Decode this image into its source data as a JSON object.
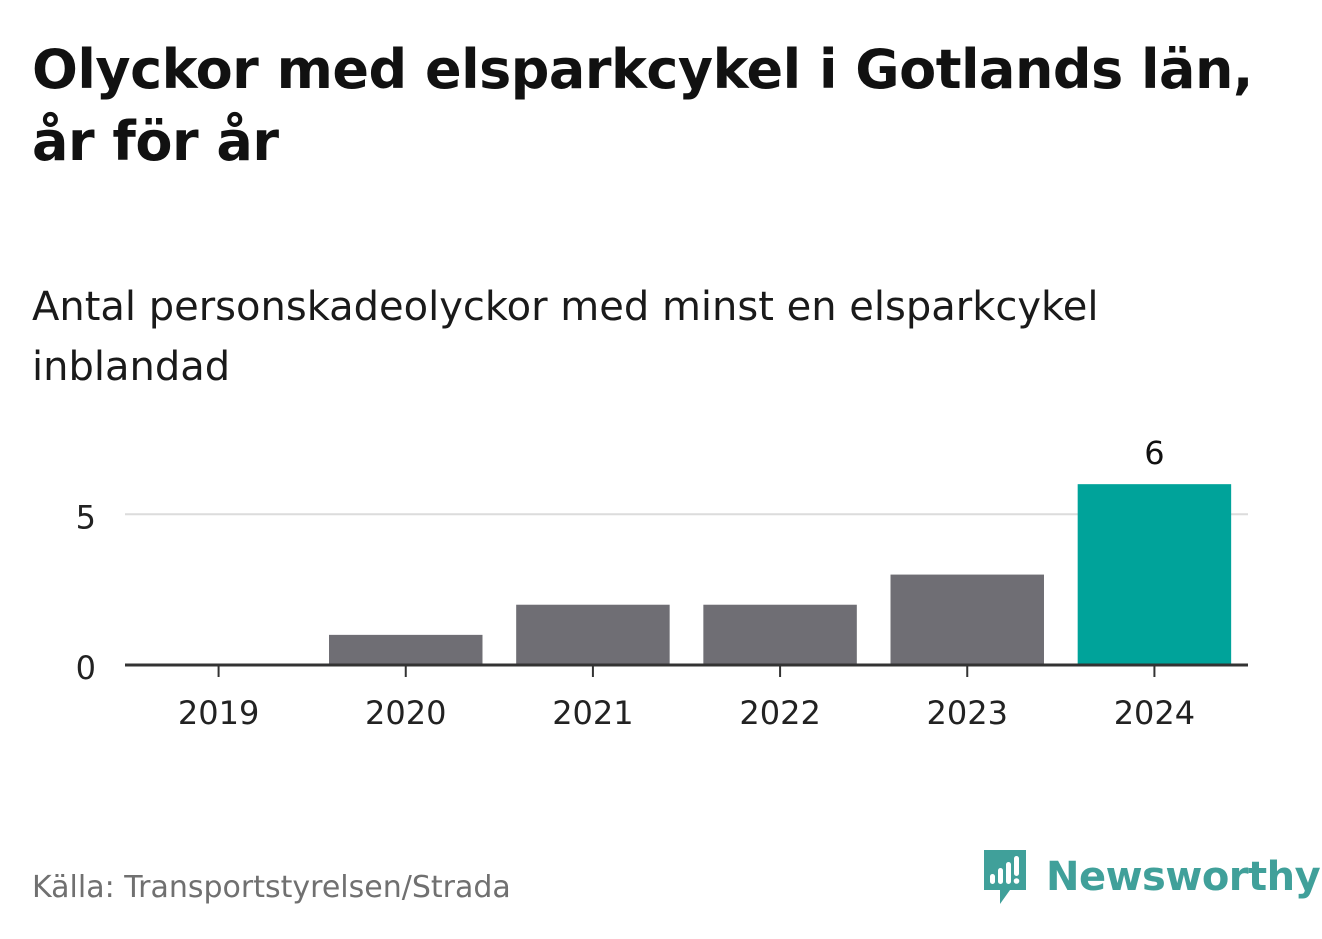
{
  "title": "Olyckor med elsparkcykel i Gotlands län, år för år",
  "subtitle": "Antal personskadeolyckor med minst en elsparkcykel inblandad",
  "source": "Källa: Transportstyrelsen/Strada",
  "brand": {
    "name": "Newsworthy",
    "icon": "newsworthy-logo-icon",
    "color": "#40a09a"
  },
  "chart_data": {
    "type": "bar",
    "categories": [
      "2019",
      "2020",
      "2021",
      "2022",
      "2023",
      "2024"
    ],
    "values": [
      0,
      1,
      2,
      2,
      3,
      6
    ],
    "ylim": [
      0,
      7.2
    ],
    "yticks": [
      0,
      5
    ],
    "grid": true,
    "highlight_index": 5,
    "value_labels": [
      {
        "index": 5,
        "text": "6"
      }
    ],
    "colors": {
      "bar": "#6f6e74",
      "highlight": "#00a39a",
      "grid": "#dcdcdc",
      "axis": "#333333"
    }
  }
}
